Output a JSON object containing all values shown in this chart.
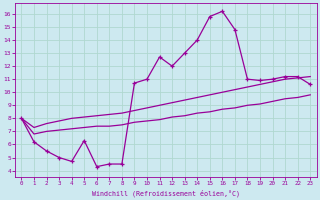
{
  "xlabel": "Windchill (Refroidissement éolien,°C)",
  "background_color": "#cde9f0",
  "grid_color": "#b0d8d0",
  "line_color": "#990099",
  "x_main": [
    0,
    1,
    2,
    3,
    4,
    5,
    6,
    7,
    8,
    9,
    10,
    11,
    12,
    13,
    14,
    15,
    16,
    17,
    18,
    19,
    20,
    21,
    22,
    23
  ],
  "y_main": [
    8.0,
    6.2,
    5.5,
    5.0,
    4.7,
    6.3,
    4.3,
    4.5,
    4.5,
    10.7,
    11.0,
    12.7,
    12.0,
    13.0,
    14.0,
    15.8,
    16.2,
    14.8,
    11.0,
    10.9,
    11.0,
    11.2,
    11.2,
    10.6
  ],
  "y_upper": [
    8.0,
    7.3,
    7.6,
    7.8,
    8.0,
    8.1,
    8.2,
    8.3,
    8.4,
    8.6,
    8.8,
    9.0,
    9.2,
    9.4,
    9.6,
    9.8,
    10.0,
    10.2,
    10.4,
    10.6,
    10.8,
    11.0,
    11.1,
    11.2
  ],
  "y_lower": [
    8.0,
    6.8,
    7.0,
    7.1,
    7.2,
    7.3,
    7.4,
    7.4,
    7.5,
    7.7,
    7.8,
    7.9,
    8.1,
    8.2,
    8.4,
    8.5,
    8.7,
    8.8,
    9.0,
    9.1,
    9.3,
    9.5,
    9.6,
    9.8
  ],
  "ylim": [
    3.5,
    16.8
  ],
  "xlim": [
    -0.5,
    23.5
  ],
  "yticks": [
    4,
    5,
    6,
    7,
    8,
    9,
    10,
    11,
    12,
    13,
    14,
    15,
    16
  ],
  "xticks": [
    0,
    1,
    2,
    3,
    4,
    5,
    6,
    7,
    8,
    9,
    10,
    11,
    12,
    13,
    14,
    15,
    16,
    17,
    18,
    19,
    20,
    21,
    22,
    23
  ]
}
